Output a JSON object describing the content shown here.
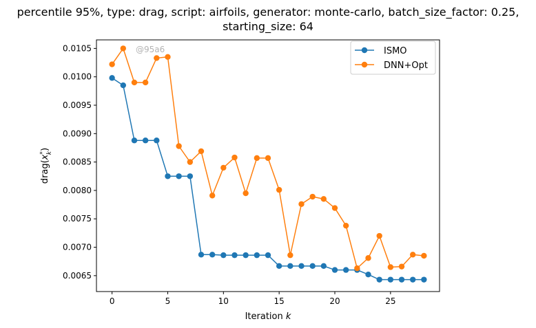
{
  "title": {
    "line1": "percentile 95%, type: drag, script: airfoils, generator: monte-carlo, batch_size_factor: 0.25,",
    "line2": "starting_size: 64"
  },
  "watermark": "@95a6",
  "colors": {
    "ismo": "#1f77b4",
    "dnn_opt": "#ff7f0e",
    "axis": "#000000"
  },
  "chart_data": {
    "type": "line",
    "title": "percentile 95%, type: drag, script: airfoils, generator: monte-carlo, batch_size_factor: 0.25, starting_size: 64",
    "xlabel": "Iteration k",
    "ylabel": "drag(x_k^*)",
    "xlim": [
      -1.4,
      29.4
    ],
    "ylim": [
      0.00622,
      0.01065
    ],
    "x_ticks": [
      0,
      5,
      10,
      15,
      20,
      25
    ],
    "x_tick_labels": [
      "0",
      "5",
      "10",
      "15",
      "20",
      "25"
    ],
    "y_ticks": [
      0.0065,
      0.007,
      0.0075,
      0.008,
      0.0085,
      0.009,
      0.0095,
      0.01,
      0.0105
    ],
    "y_tick_labels": [
      "0.0065",
      "0.0070",
      "0.0075",
      "0.0080",
      "0.0085",
      "0.0090",
      "0.0095",
      "0.0100",
      "0.0105"
    ],
    "legend_position": "top-right",
    "grid": false,
    "x": [
      0,
      1,
      2,
      3,
      4,
      5,
      6,
      7,
      8,
      9,
      10,
      11,
      12,
      13,
      14,
      15,
      16,
      17,
      18,
      19,
      20,
      21,
      22,
      23,
      24,
      25,
      26,
      27,
      28
    ],
    "series": [
      {
        "name": "ISMO",
        "color": "#1f77b4",
        "values": [
          0.00998,
          0.00985,
          0.00888,
          0.00888,
          0.00888,
          0.00825,
          0.00825,
          0.00825,
          0.00687,
          0.00687,
          0.00686,
          0.00686,
          0.00686,
          0.00686,
          0.00686,
          0.00667,
          0.00667,
          0.00667,
          0.00667,
          0.00667,
          0.0066,
          0.0066,
          0.0066,
          0.00652,
          0.00643,
          0.00643,
          0.00643,
          0.00643,
          0.00643
        ]
      },
      {
        "name": "DNN+Opt",
        "color": "#ff7f0e",
        "values": [
          0.01022,
          0.0105,
          0.0099,
          0.0099,
          0.01033,
          0.01035,
          0.00878,
          0.0085,
          0.00869,
          0.00791,
          0.0084,
          0.00858,
          0.00795,
          0.00857,
          0.00857,
          0.00801,
          0.00686,
          0.00776,
          0.00789,
          0.00785,
          0.00769,
          0.00738,
          0.00663,
          0.00681,
          0.0072,
          0.00665,
          0.00666,
          0.00687,
          0.00685
        ]
      }
    ]
  }
}
